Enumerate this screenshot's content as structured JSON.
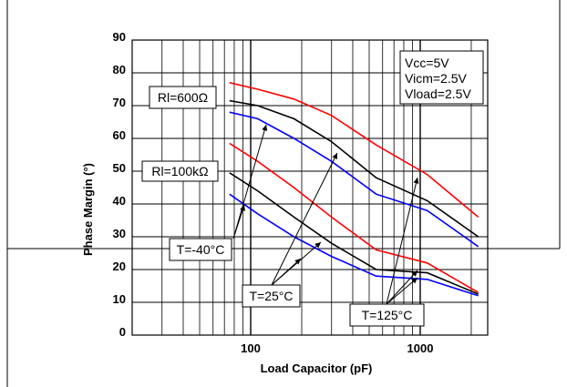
{
  "chart_data": {
    "type": "line",
    "xlabel": "Load Capacitor (pF)",
    "ylabel": "Phase Margin (°)",
    "xscale": "log",
    "xlim": [
      20,
      2500
    ],
    "ylim": [
      0,
      90
    ],
    "x_ticks": [
      {
        "value": 100,
        "label": "100"
      },
      {
        "value": 1000,
        "label": "1000"
      }
    ],
    "y_ticks": [
      0,
      10,
      20,
      30,
      40,
      50,
      60,
      70,
      80,
      90
    ],
    "grid": true,
    "condition_box": [
      "Vcc=5V",
      "Vicm=2.5V",
      "Vload=2.5V"
    ],
    "group_labels": [
      "Rl=600Ω",
      "Rl=100kΩ"
    ],
    "temperature_labels": [
      "T=-40°C",
      "T=25°C",
      "T=125°C"
    ],
    "colors": {
      "t_minus40": "#ff0000",
      "t_25": "#000000",
      "t_125": "#0000ff"
    },
    "series": [
      {
        "color": "#ff0000",
        "x": [
          75,
          110,
          180,
          300,
          550,
          1100,
          2200
        ],
        "y": [
          77,
          75,
          72,
          67,
          58,
          49,
          36
        ]
      },
      {
        "color": "#000000",
        "x": [
          75,
          110,
          180,
          300,
          550,
          1100,
          2200
        ],
        "y": [
          71.5,
          70,
          66,
          59,
          48,
          41,
          30
        ]
      },
      {
        "color": "#0000ff",
        "x": [
          75,
          110,
          180,
          300,
          550,
          1100,
          2200
        ],
        "y": [
          68,
          66,
          60,
          53,
          43,
          38,
          27
        ]
      },
      {
        "color": "#ff0000",
        "x": [
          75,
          110,
          180,
          300,
          550,
          1100,
          2200
        ],
        "y": [
          58.5,
          53,
          45,
          36,
          26,
          22,
          13
        ]
      },
      {
        "color": "#000000",
        "x": [
          75,
          110,
          180,
          300,
          550,
          1100,
          2200
        ],
        "y": [
          49.5,
          44,
          36,
          28,
          20,
          19,
          12.5
        ]
      },
      {
        "color": "#0000ff",
        "x": [
          75,
          110,
          180,
          300,
          550,
          1100,
          2200
        ],
        "y": [
          43,
          37,
          30,
          24,
          18,
          17,
          12
        ]
      }
    ]
  }
}
